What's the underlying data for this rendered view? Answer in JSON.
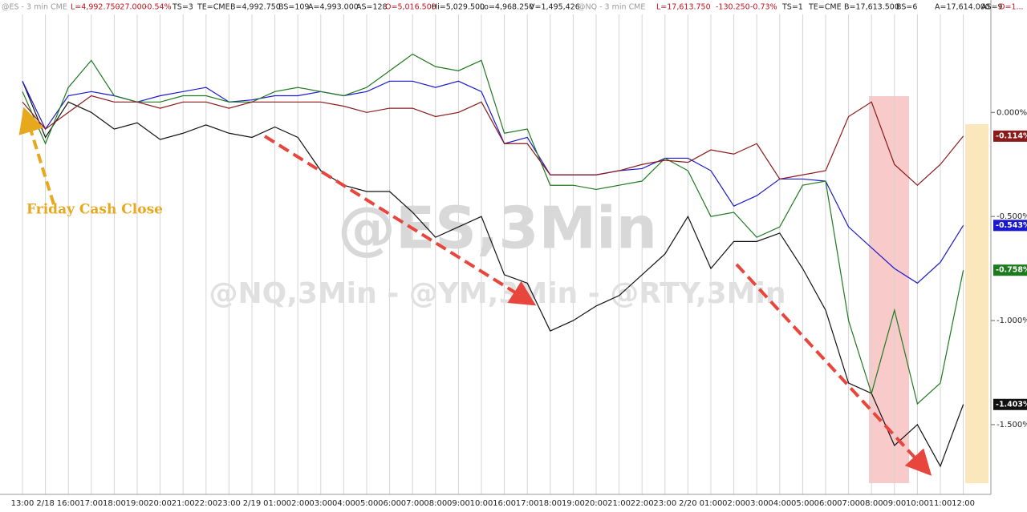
{
  "header": [
    "@ES - 3 min  CME",
    "L=4,992.750",
    "-27.000",
    "-0.54%",
    "TS=3",
    "TE=CME",
    "B=4,992.750",
    "BS=109",
    "A=4,993.000",
    "AS=128",
    "O=5,016.500",
    "Hi=5,029.500",
    "Lo=4,968.250",
    "V=1,495,426",
    "@NQ - 3 min  CME",
    "L=17,613.750",
    "-130.250",
    "-0.73%",
    "TS=1",
    "TE=CME",
    "B=17,613.500",
    "BS=6",
    "A=17,614.000",
    "AS=9",
    "O=1..."
  ],
  "chart_data": {
    "type": "line",
    "watermark": "@ES,3Min",
    "subtitle": "@NQ,3Min - @YM,3Min - @RTY,3Min",
    "annotations": [
      "Friday Cash Close"
    ],
    "categories": [
      "13:00",
      "2/18",
      "16:00",
      "17:00",
      "18:00",
      "19:00",
      "20:00",
      "21:00",
      "22:00",
      "23:00",
      "2/19",
      "01:00",
      "02:00",
      "03:00",
      "04:00",
      "05:00",
      "06:00",
      "07:00",
      "08:00",
      "09:00",
      "10:00",
      "16:00",
      "17:00",
      "18:00",
      "19:00",
      "20:00",
      "21:00",
      "22:00",
      "23:00",
      "2/20",
      "01:00",
      "02:00",
      "03:00",
      "04:00",
      "05:00",
      "06:00",
      "07:00",
      "08:00",
      "09:00",
      "10:00",
      "11:00",
      "12:00"
    ],
    "ylim": [
      -1.835,
      0.54
    ],
    "yticks": [
      {
        "value": 0,
        "label": "0.000%"
      },
      {
        "value": -0.5,
        "label": "-0.500%"
      },
      {
        "value": -1,
        "label": "-1.000%"
      },
      {
        "value": -1.5,
        "label": "-1.500%"
      }
    ],
    "grid": true,
    "series": [
      {
        "color": "#111111",
        "values": [
          0.15,
          -0.12,
          0.05,
          0,
          -0.08,
          -0.05,
          -0.13,
          -0.1,
          -0.06,
          -0.1,
          -0.12,
          -0.07,
          -0.12,
          -0.28,
          -0.35,
          -0.38,
          -0.38,
          -0.48,
          -0.6,
          -0.55,
          -0.5,
          -0.78,
          -0.82,
          -1.05,
          -1,
          -0.93,
          -0.88,
          -0.78,
          -0.68,
          -0.5,
          -0.75,
          -0.62,
          -0.62,
          -0.58,
          -0.75,
          -0.95,
          -1.3,
          -1.35,
          -1.6,
          -1.5,
          -1.7,
          -1.403
        ],
        "value_labels": [
          null,
          null,
          null,
          null,
          null,
          null,
          null,
          null,
          null,
          null,
          null,
          null,
          null,
          null,
          null,
          null,
          null,
          null,
          null,
          null,
          null,
          null,
          null,
          null,
          null,
          null,
          null,
          null,
          null,
          null,
          null,
          null,
          null,
          null,
          null,
          null,
          null,
          null,
          null,
          null,
          null,
          "-1.403%"
        ]
      },
      {
        "color": "#1a1acc",
        "values": [
          0.15,
          -0.08,
          0.08,
          0.1,
          0.08,
          0.05,
          0.08,
          0.1,
          0.12,
          0.05,
          0.06,
          0.08,
          0.08,
          0.1,
          0.08,
          0.1,
          0.15,
          0.15,
          0.12,
          0.15,
          0.1,
          -0.15,
          -0.12,
          -0.3,
          -0.3,
          -0.3,
          -0.28,
          -0.27,
          -0.22,
          -0.22,
          -0.28,
          -0.45,
          -0.4,
          -0.32,
          -0.32,
          -0.33,
          -0.55,
          -0.65,
          -0.75,
          -0.82,
          -0.72,
          -0.543
        ],
        "value_labels": [
          null,
          null,
          null,
          null,
          null,
          null,
          null,
          null,
          null,
          null,
          null,
          null,
          null,
          null,
          null,
          null,
          null,
          null,
          null,
          null,
          null,
          null,
          null,
          null,
          null,
          null,
          null,
          null,
          null,
          null,
          null,
          null,
          null,
          null,
          null,
          null,
          null,
          null,
          null,
          null,
          null,
          "-0.543%"
        ]
      },
      {
        "color": "#1e7a1e",
        "values": [
          0.1,
          -0.15,
          0.12,
          0.25,
          0.08,
          0.05,
          0.05,
          0.08,
          0.08,
          0.05,
          0.05,
          0.1,
          0.12,
          0.1,
          0.08,
          0.12,
          0.2,
          0.28,
          0.22,
          0.2,
          0.25,
          -0.1,
          -0.08,
          -0.35,
          -0.35,
          -0.37,
          -0.35,
          -0.33,
          -0.22,
          -0.28,
          -0.5,
          -0.48,
          -0.6,
          -0.55,
          -0.35,
          -0.33,
          -1,
          -1.35,
          -0.95,
          -1.4,
          -1.3,
          -0.758
        ],
        "value_labels": [
          null,
          null,
          null,
          null,
          null,
          null,
          null,
          null,
          null,
          null,
          null,
          null,
          null,
          null,
          null,
          null,
          null,
          null,
          null,
          null,
          null,
          null,
          null,
          null,
          null,
          null,
          null,
          null,
          null,
          null,
          null,
          null,
          null,
          null,
          null,
          null,
          null,
          null,
          null,
          null,
          null,
          "-0.758%"
        ]
      },
      {
        "color": "#8b1a1a",
        "values": [
          0.05,
          -0.08,
          0,
          0.08,
          0.05,
          0.05,
          0.02,
          0.05,
          0.05,
          0.02,
          0.05,
          0.05,
          0.05,
          0.05,
          0.03,
          0,
          0.02,
          0.02,
          -0.02,
          0,
          0.05,
          -0.15,
          -0.15,
          -0.3,
          -0.3,
          -0.3,
          -0.28,
          -0.25,
          -0.23,
          -0.24,
          -0.18,
          -0.2,
          -0.15,
          -0.32,
          -0.3,
          -0.28,
          -0.02,
          0.05,
          -0.25,
          -0.35,
          -0.25,
          -0.114
        ],
        "value_labels": [
          null,
          null,
          null,
          null,
          null,
          null,
          null,
          null,
          null,
          null,
          null,
          null,
          null,
          null,
          null,
          null,
          null,
          null,
          null,
          null,
          null,
          null,
          null,
          null,
          null,
          null,
          null,
          null,
          null,
          null,
          null,
          null,
          null,
          null,
          null,
          null,
          null,
          null,
          null,
          null,
          null,
          "-0.114%"
        ]
      }
    ]
  }
}
